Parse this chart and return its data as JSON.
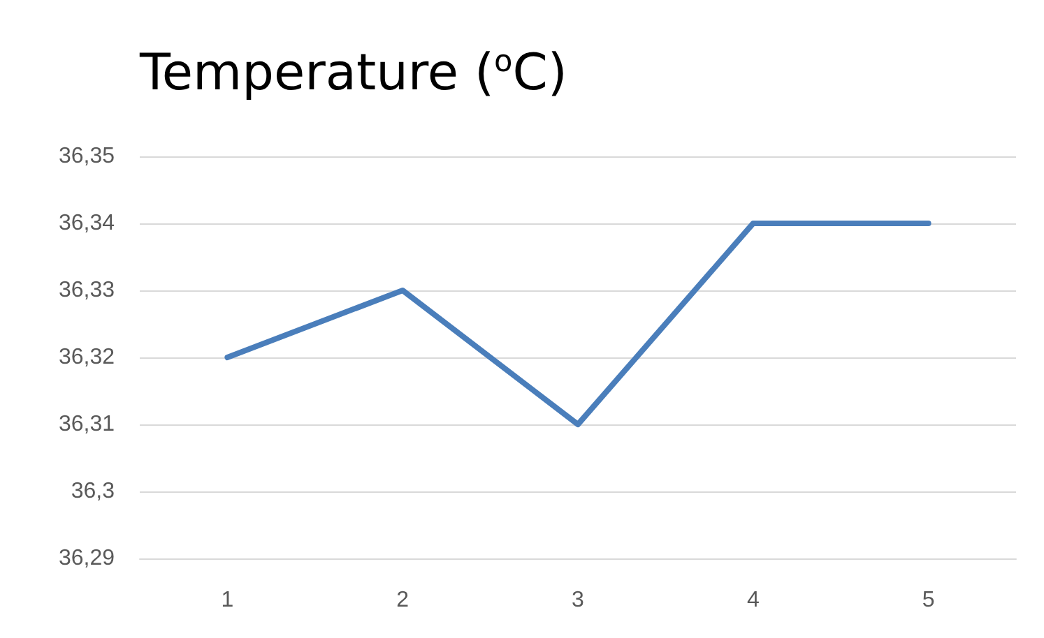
{
  "chart_data": {
    "type": "line",
    "title": "Temperature ($^{o}$C)",
    "categories": [
      "1",
      "2",
      "3",
      "4",
      "5"
    ],
    "series": [
      {
        "color": "#4a7ebb",
        "values": [
          36.32,
          36.33,
          36.31,
          36.34,
          36.34
        ]
      }
    ],
    "ylim": [
      36.29,
      36.35
    ],
    "yticks": [
      {
        "value": 36.29,
        "label": "36,29"
      },
      {
        "value": 36.3,
        "label": "36,3"
      },
      {
        "value": 36.31,
        "label": "36,31"
      },
      {
        "value": 36.32,
        "label": "36,32"
      },
      {
        "value": 36.33,
        "label": "36,33"
      },
      {
        "value": 36.34,
        "label": "36,34"
      },
      {
        "value": 36.35,
        "label": "36,35"
      }
    ],
    "grid": "y",
    "marker": "none",
    "line_style": "solid"
  }
}
